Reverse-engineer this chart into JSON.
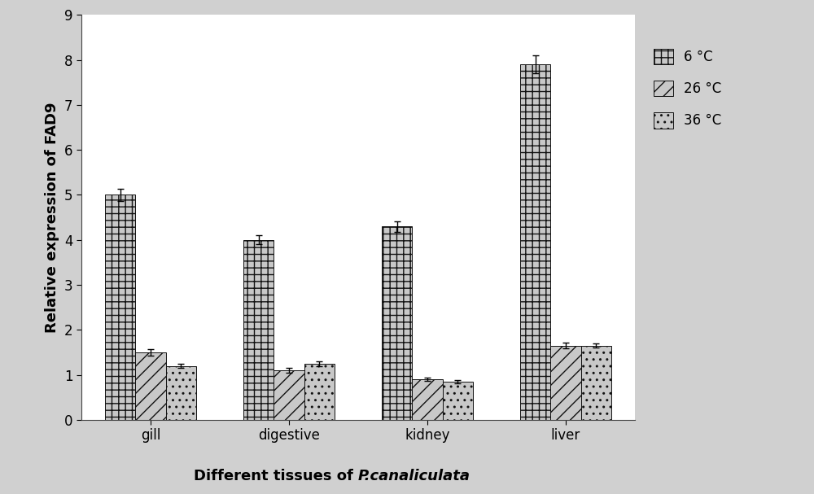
{
  "categories": [
    "gill",
    "digestive",
    "kidney",
    "liver"
  ],
  "series": {
    "6 °C": [
      5.0,
      4.0,
      4.3,
      7.9
    ],
    "26 °C": [
      1.5,
      1.1,
      0.9,
      1.65
    ],
    "36 °C": [
      1.2,
      1.25,
      0.85,
      1.65
    ]
  },
  "errors": {
    "6 °C": [
      0.13,
      0.1,
      0.12,
      0.2
    ],
    "26 °C": [
      0.07,
      0.05,
      0.04,
      0.06
    ],
    "36 °C": [
      0.05,
      0.05,
      0.04,
      0.05
    ]
  },
  "ylabel": "Relative expression of FAD9",
  "xlabel_normal": "Different tissues of ",
  "xlabel_italic": "P.canaliculata",
  "ylim": [
    0,
    9
  ],
  "yticks": [
    0,
    1,
    2,
    3,
    4,
    5,
    6,
    7,
    8,
    9
  ],
  "legend_labels": [
    "6 °C",
    "26 °C",
    "36 °C"
  ],
  "bar_width": 0.22,
  "background_color": "#ffffff",
  "outer_background": "#d0d0d0",
  "bar_face_color": "#c8c8c8",
  "bar_edge_color": "#111111",
  "hatch_patterns": [
    "++",
    "//",
    ".."
  ],
  "figsize": [
    10.0,
    6.07
  ],
  "dpi": 100,
  "axis_label_fontsize": 13,
  "tick_fontsize": 12,
  "legend_fontsize": 12
}
